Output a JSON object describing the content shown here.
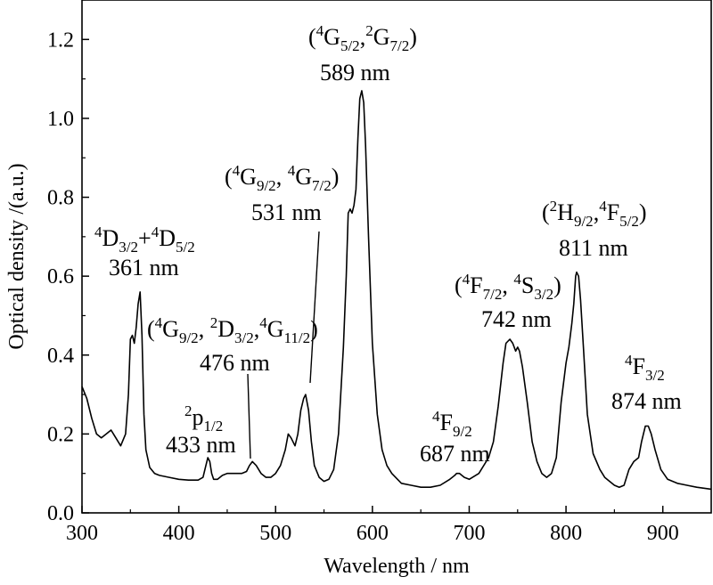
{
  "chart_data": {
    "type": "line",
    "xlabel": "Wavelength / nm",
    "ylabel": "Optical density /(a.u.)",
    "xlim": [
      300,
      950
    ],
    "ylim": [
      0.0,
      1.3
    ],
    "grid": false,
    "x_ticks": [
      300,
      400,
      500,
      600,
      700,
      800,
      900
    ],
    "x_tick_labels": [
      "300",
      "400",
      "500",
      "600",
      "700",
      "800",
      "900"
    ],
    "y_ticks": [
      0.0,
      0.2,
      0.4,
      0.6,
      0.8,
      1.0,
      1.2
    ],
    "y_tick_labels": [
      "0.0",
      "0.2",
      "0.4",
      "0.6",
      "0.8",
      "1.0",
      "1.2"
    ],
    "series": [
      {
        "x": [
          300,
          305,
          310,
          315,
          320,
          325,
          330,
          335,
          340,
          345,
          348,
          350,
          352,
          354,
          356,
          358,
          360,
          362,
          364,
          366,
          370,
          375,
          380,
          390,
          400,
          410,
          420,
          425,
          428,
          430,
          432,
          434,
          436,
          440,
          445,
          450,
          455,
          460,
          465,
          470,
          473,
          476,
          480,
          485,
          490,
          495,
          500,
          505,
          510,
          513,
          516,
          520,
          523,
          526,
          529,
          531,
          534,
          537,
          540,
          545,
          550,
          555,
          560,
          565,
          570,
          573,
          575,
          577,
          579,
          581,
          583,
          585,
          587,
          589,
          591,
          593,
          596,
          600,
          605,
          610,
          615,
          620,
          630,
          640,
          650,
          660,
          670,
          680,
          685,
          687,
          690,
          695,
          700,
          710,
          720,
          725,
          730,
          735,
          738,
          742,
          745,
          748,
          750,
          752,
          755,
          760,
          765,
          770,
          775,
          780,
          785,
          790,
          795,
          800,
          803,
          806,
          808,
          810,
          811,
          813,
          815,
          818,
          822,
          828,
          835,
          840,
          845,
          850,
          855,
          860,
          865,
          870,
          875,
          878,
          882,
          885,
          888,
          892,
          898,
          905,
          915,
          925,
          935,
          950
        ],
        "y": [
          0.32,
          0.29,
          0.24,
          0.2,
          0.19,
          0.2,
          0.21,
          0.19,
          0.17,
          0.2,
          0.3,
          0.44,
          0.45,
          0.43,
          0.47,
          0.53,
          0.56,
          0.45,
          0.25,
          0.16,
          0.115,
          0.1,
          0.095,
          0.09,
          0.085,
          0.083,
          0.083,
          0.09,
          0.12,
          0.14,
          0.13,
          0.1,
          0.085,
          0.085,
          0.095,
          0.1,
          0.1,
          0.1,
          0.1,
          0.105,
          0.12,
          0.13,
          0.12,
          0.1,
          0.09,
          0.09,
          0.1,
          0.12,
          0.16,
          0.2,
          0.19,
          0.17,
          0.2,
          0.26,
          0.29,
          0.3,
          0.26,
          0.18,
          0.12,
          0.09,
          0.08,
          0.085,
          0.11,
          0.2,
          0.42,
          0.6,
          0.76,
          0.77,
          0.76,
          0.78,
          0.82,
          0.95,
          1.05,
          1.07,
          1.04,
          0.93,
          0.7,
          0.43,
          0.25,
          0.16,
          0.12,
          0.1,
          0.075,
          0.07,
          0.065,
          0.065,
          0.07,
          0.085,
          0.095,
          0.1,
          0.1,
          0.09,
          0.085,
          0.1,
          0.14,
          0.18,
          0.27,
          0.38,
          0.43,
          0.44,
          0.43,
          0.41,
          0.42,
          0.41,
          0.37,
          0.28,
          0.18,
          0.13,
          0.1,
          0.09,
          0.1,
          0.14,
          0.28,
          0.38,
          0.42,
          0.48,
          0.53,
          0.6,
          0.61,
          0.6,
          0.54,
          0.42,
          0.25,
          0.15,
          0.11,
          0.09,
          0.08,
          0.07,
          0.065,
          0.07,
          0.11,
          0.13,
          0.14,
          0.18,
          0.22,
          0.22,
          0.2,
          0.16,
          0.11,
          0.085,
          0.075,
          0.07,
          0.065,
          0.06
        ]
      }
    ],
    "annotations": [
      {
        "label": "4D3/2+4D5/2 361 nm"
      },
      {
        "label": "2p1/2 433 nm"
      },
      {
        "label": "(4G9/2, 2D3/2, 4G11/2) 476 nm"
      },
      {
        "label": "(4G9/2, 4G7/2) 531 nm"
      },
      {
        "label": "(4G5/2, 2G7/2) 589 nm"
      },
      {
        "label": "4F9/2 687 nm"
      },
      {
        "label": "(4F7/2, 4S3/2) 742 nm"
      },
      {
        "label": "(2H9/2, 4F5/2) 811 nm"
      },
      {
        "label": "4F3/2 874 nm"
      }
    ]
  },
  "annotations": {
    "a361": {
      "nm": "361 nm",
      "s1": "4",
      "b1": "D",
      "n1": "3/2",
      "plus": "+",
      "s2": "4",
      "b2": "D",
      "n2": "5/2"
    },
    "a433": {
      "nm": "433 nm",
      "s1": "2",
      "b1": "p",
      "n1": "1/2"
    },
    "a476": {
      "nm": "476 nm",
      "open": "(",
      "s1": "4",
      "b1": "G",
      "n1": "9/2",
      "sep1": ", ",
      "s2": "2",
      "b2": "D",
      "n2": "3/2",
      "sep2": ",",
      "s3": "4",
      "b3": "G",
      "n3": "11/2",
      "close": ")"
    },
    "a531": {
      "nm": "531 nm",
      "open": "(",
      "s1": "4",
      "b1": "G",
      "n1": "9/2",
      "sep1": ", ",
      "s2": "4",
      "b2": "G",
      "n2": "7/2",
      "close": ")"
    },
    "a589": {
      "nm": "589 nm",
      "open": "(",
      "s1": "4",
      "b1": "G",
      "n1": "5/2",
      "sep1": ",",
      "s2": "2",
      "b2": "G",
      "n2": "7/2",
      "close": ")"
    },
    "a687": {
      "nm": "687 nm",
      "s1": "4",
      "b1": "F",
      "n1": "9/2"
    },
    "a742": {
      "nm": "742 nm",
      "open": "(",
      "s1": "4",
      "b1": "F",
      "n1": "7/2",
      "sep1": ", ",
      "s2": "4",
      "b2": "S",
      "n2": "3/2",
      "close": ")"
    },
    "a811": {
      "nm": "811 nm",
      "open": "(",
      "s1": "2",
      "b1": "H",
      "n1": "9/2",
      "sep1": ",",
      "s2": "4",
      "b2": "F",
      "n2": "5/2",
      "close": ")"
    },
    "a874": {
      "nm": "874 nm",
      "s1": "4",
      "b1": "F",
      "n1": "3/2"
    }
  }
}
